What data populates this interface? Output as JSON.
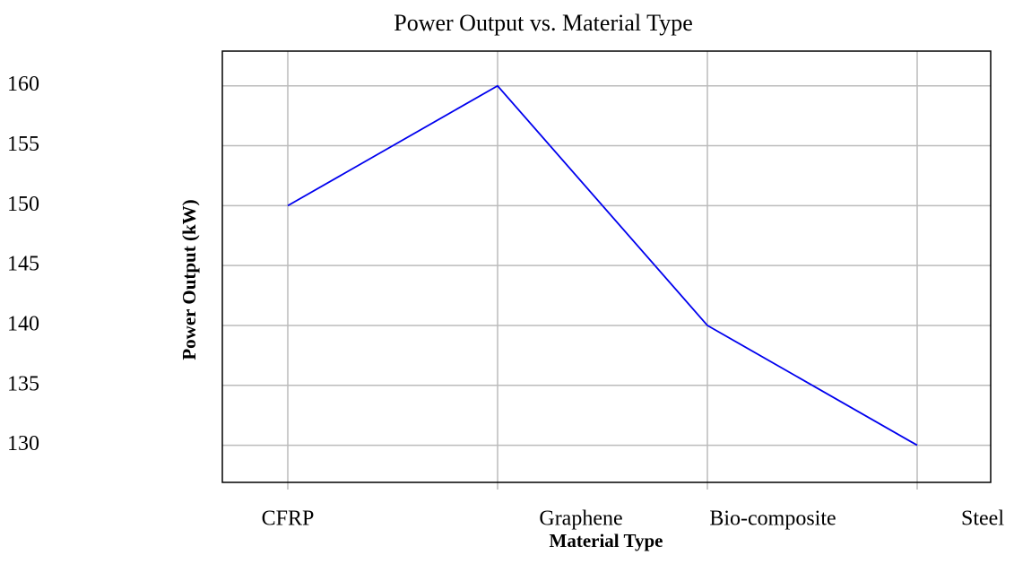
{
  "chart_data": {
    "type": "line",
    "title": "Power Output vs. Material Type",
    "x_label": "Material Type",
    "y_label": "Power Output (kW)",
    "categories": [
      "CFRP",
      "Graphene",
      "Bio-composite",
      "Steel"
    ],
    "series": [
      {
        "name": "Power Output",
        "color": "#0000ee",
        "values": [
          150,
          160,
          140,
          130
        ]
      }
    ],
    "ylim": [
      126.9,
      162.9
    ],
    "yticks": [
      130,
      135,
      140,
      145,
      150,
      155,
      160
    ],
    "grid": true
  }
}
